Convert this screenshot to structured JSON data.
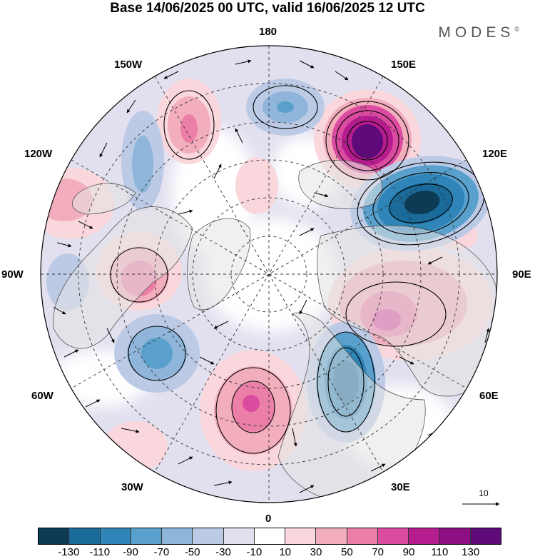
{
  "title": "Base 14/06/2025 00 UTC, valid 16/06/2025 12 UTC",
  "brand": "MODES",
  "brand_mark": "©",
  "longitude_labels": {
    "top": "180",
    "bottom": "0",
    "left": "90W",
    "right": "90E",
    "upper_left_1": "150W",
    "upper_left_2": "120W",
    "upper_right_1": "150E",
    "upper_right_2": "120E",
    "lower_left_1": "60W",
    "lower_left_2": "30W",
    "lower_right_1": "60E",
    "lower_right_2": "30E"
  },
  "vector_scale_label": "10",
  "colorbar": {
    "ticks": [
      "-130",
      "-110",
      "-90",
      "-70",
      "-50",
      "-30",
      "-10",
      "10",
      "30",
      "50",
      "70",
      "90",
      "110",
      "130"
    ],
    "colors": [
      "#0d3b55",
      "#1a6a9a",
      "#2f85b8",
      "#5aa0cc",
      "#8fb6da",
      "#bccae6",
      "#e2e0ef",
      "#ffffff",
      "#f9d7dc",
      "#f3aebd",
      "#ec7fa7",
      "#db4ba0",
      "#b51d8e",
      "#8c0f84",
      "#5e0a78"
    ]
  },
  "colors": {
    "land": "#e4e4e4",
    "ocean": "#ffffff",
    "coast": "#333333"
  }
}
